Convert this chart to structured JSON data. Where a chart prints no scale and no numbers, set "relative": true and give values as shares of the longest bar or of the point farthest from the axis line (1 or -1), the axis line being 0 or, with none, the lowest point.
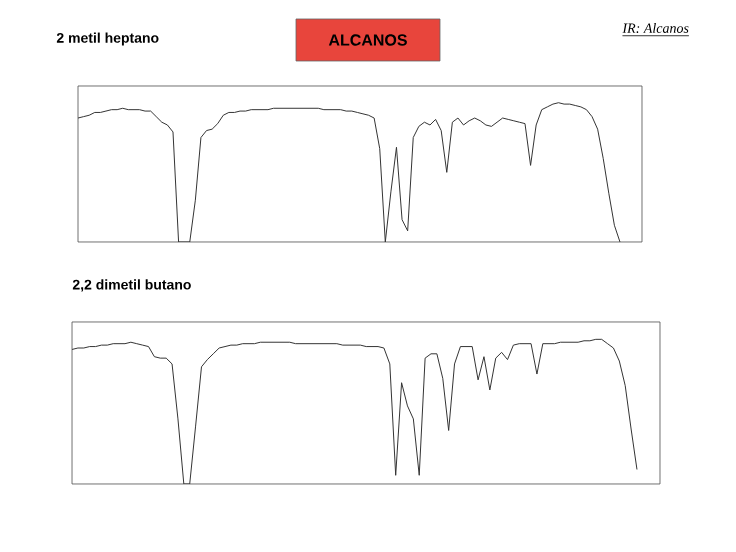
{
  "chart_data": [
    {
      "type": "line",
      "title": "2 metil heptano",
      "relative": true,
      "annotations": [
        "ALCANOS",
        "IR: Alcanos"
      ],
      "categories": [
        null,
        null,
        null,
        null,
        null,
        null,
        null,
        null,
        null,
        null,
        null,
        null,
        null,
        null,
        null,
        null,
        null,
        null,
        null,
        null,
        null,
        null,
        null,
        null,
        null,
        null,
        null,
        null,
        null,
        null,
        null,
        null,
        null,
        null,
        null,
        null,
        null,
        null,
        null,
        null,
        null,
        null,
        null,
        null,
        null,
        null,
        null,
        null,
        null,
        null,
        null,
        null,
        null,
        null,
        null,
        null,
        null,
        null,
        null,
        null,
        null,
        null,
        null,
        null,
        null,
        null,
        null,
        null,
        null,
        null,
        null,
        null,
        null,
        null,
        null,
        null,
        null,
        null,
        null,
        null,
        null,
        null,
        null,
        null,
        null,
        null,
        null,
        null,
        null,
        null,
        null,
        null,
        null,
        null,
        null,
        null,
        null,
        null
      ],
      "series": [
        {
          "color": "#333333",
          "values": [
            0.89,
            0.9,
            0.91,
            0.93,
            0.93,
            0.94,
            0.95,
            0.95,
            0.96,
            0.95,
            0.95,
            0.95,
            0.94,
            0.94,
            0.9,
            0.86,
            0.84,
            0.79,
            0,
            0,
            0,
            0.3,
            0.75,
            0.8,
            0.81,
            0.85,
            0.91,
            0.93,
            0.93,
            0.94,
            0.94,
            0.95,
            0.95,
            0.95,
            0.95,
            0.96,
            0.96,
            0.96,
            0.96,
            0.96,
            0.96,
            0.96,
            0.96,
            0.96,
            0.95,
            0.95,
            0.95,
            0.95,
            0.94,
            0.94,
            0.93,
            0.92,
            0.91,
            0.89,
            0.67,
            0,
            0.36,
            0.68,
            0.16,
            0.08,
            0.75,
            0.83,
            0.86,
            0.84,
            0.88,
            0.8,
            0.5,
            0.86,
            0.89,
            0.84,
            0.87,
            0.89,
            0.87,
            0.84,
            0.83,
            0.86,
            0.89,
            0.88,
            0.87,
            0.86,
            0.85,
            0.55,
            0.84,
            0.95,
            0.97,
            0.99,
            1.0,
            0.99,
            0.99,
            0.98,
            0.97,
            0.95,
            0.9,
            0.81,
            0.6,
            0.35,
            0.12,
            0
          ]
        }
      ]
    },
    {
      "type": "line",
      "title": "2,2 dimetil butano",
      "relative": true,
      "categories": [
        null,
        null,
        null,
        null,
        null,
        null,
        null,
        null,
        null,
        null,
        null,
        null,
        null,
        null,
        null,
        null,
        null,
        null,
        null,
        null,
        null,
        null,
        null,
        null,
        null,
        null,
        null,
        null,
        null,
        null,
        null,
        null,
        null,
        null,
        null,
        null,
        null,
        null,
        null,
        null,
        null,
        null,
        null,
        null,
        null,
        null,
        null,
        null,
        null,
        null,
        null,
        null,
        null,
        null,
        null,
        null,
        null,
        null,
        null,
        null,
        null,
        null,
        null,
        null,
        null,
        null,
        null,
        null,
        null,
        null,
        null,
        null,
        null,
        null,
        null,
        null,
        null,
        null,
        null,
        null,
        null,
        null,
        null,
        null,
        null,
        null,
        null,
        null,
        null,
        null,
        null,
        null,
        null,
        null,
        null,
        null,
        null
      ],
      "series": [
        {
          "color": "#333333",
          "values": [
            0.93,
            0.94,
            0.94,
            0.95,
            0.95,
            0.96,
            0.96,
            0.97,
            0.97,
            0.97,
            0.98,
            0.97,
            0.96,
            0.95,
            0.88,
            0.87,
            0.87,
            0.83,
            0.45,
            0,
            0,
            0.4,
            0.81,
            0.86,
            0.9,
            0.94,
            0.95,
            0.96,
            0.96,
            0.97,
            0.97,
            0.97,
            0.98,
            0.98,
            0.98,
            0.98,
            0.98,
            0.98,
            0.97,
            0.97,
            0.97,
            0.97,
            0.97,
            0.97,
            0.97,
            0.97,
            0.96,
            0.96,
            0.96,
            0.96,
            0.95,
            0.95,
            0.95,
            0.94,
            0.83,
            0.06,
            0.7,
            0.54,
            0.45,
            0.06,
            0.87,
            0.9,
            0.9,
            0.73,
            0.37,
            0.83,
            0.95,
            0.95,
            0.95,
            0.72,
            0.88,
            0.65,
            0.87,
            0.91,
            0.86,
            0.96,
            0.97,
            0.97,
            0.97,
            0.76,
            0.97,
            0.97,
            0.97,
            0.98,
            0.98,
            0.98,
            0.98,
            0.99,
            0.99,
            1.0,
            1.0,
            0.97,
            0.94,
            0.85,
            0.68,
            0.38,
            0.1
          ]
        }
      ]
    }
  ]
}
